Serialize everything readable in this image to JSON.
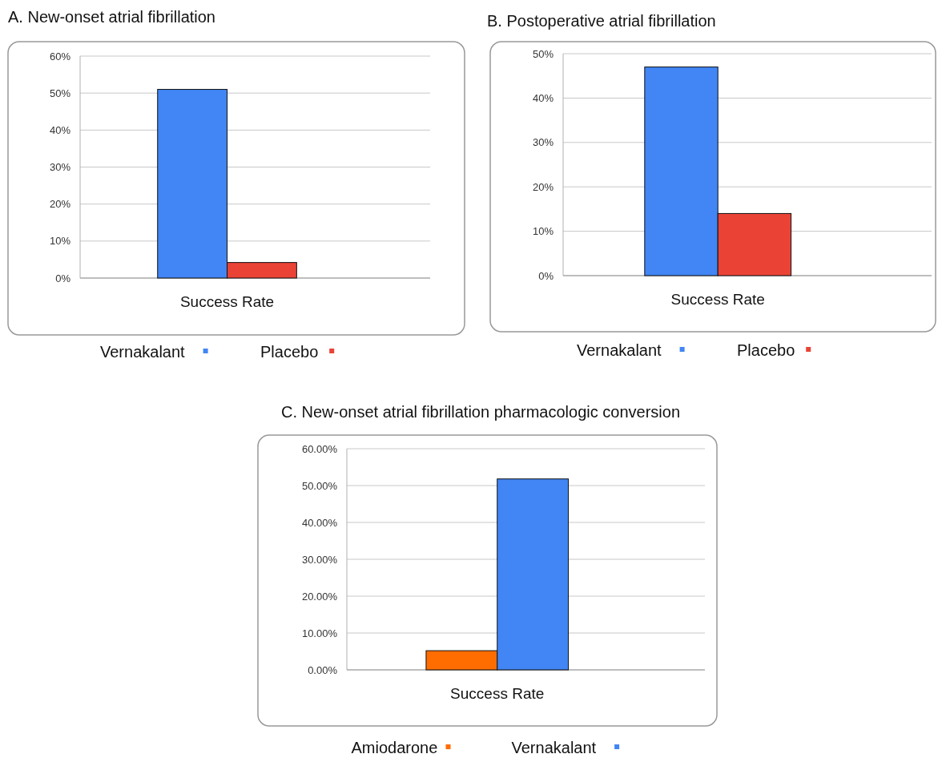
{
  "chart_data": [
    {
      "type": "bar",
      "title": "A. New-onset atrial fibrillation",
      "categories": [
        "Success Rate"
      ],
      "series": [
        {
          "name": "Vernakalant",
          "color": "#4285f4",
          "values": [
            51
          ]
        },
        {
          "name": "Placebo",
          "color": "#ea4335",
          "values": [
            4.2
          ]
        }
      ],
      "ylim": [
        0,
        60
      ],
      "yticks": [
        {
          "value": 0,
          "label": "0%"
        },
        {
          "value": 10,
          "label": "10%"
        },
        {
          "value": 20,
          "label": "20%"
        },
        {
          "value": 30,
          "label": "30%"
        },
        {
          "value": 40,
          "label": "40%"
        },
        {
          "value": 50,
          "label": "50%"
        },
        {
          "value": 60,
          "label": "60%"
        }
      ],
      "grid": "y",
      "legend": "bottom"
    },
    {
      "type": "bar",
      "title": "B.  Postoperative atrial fibrillation",
      "categories": [
        "Success Rate"
      ],
      "series": [
        {
          "name": "Vernakalant",
          "color": "#4285f4",
          "values": [
            47
          ]
        },
        {
          "name": "Placebo",
          "color": "#ea4335",
          "values": [
            14
          ]
        }
      ],
      "ylim": [
        0,
        50
      ],
      "yticks": [
        {
          "value": 0,
          "label": "0%"
        },
        {
          "value": 10,
          "label": "10%"
        },
        {
          "value": 20,
          "label": "20%"
        },
        {
          "value": 30,
          "label": "30%"
        },
        {
          "value": 40,
          "label": "40%"
        },
        {
          "value": 50,
          "label": "50%"
        }
      ],
      "grid": "y",
      "legend": "bottom"
    },
    {
      "type": "bar",
      "title": "C. New-onset atrial fibrillation pharmacologic conversion",
      "categories": [
        "Success Rate"
      ],
      "series": [
        {
          "name": "Amiodarone",
          "color": "#ff6d01",
          "values": [
            5.2
          ]
        },
        {
          "name": "Vernakalant",
          "color": "#4285f4",
          "values": [
            51.8
          ]
        }
      ],
      "ylim": [
        0,
        60
      ],
      "yticks": [
        {
          "value": 0,
          "label": "0.00%"
        },
        {
          "value": 10,
          "label": "10.00%"
        },
        {
          "value": 20,
          "label": "20.00%"
        },
        {
          "value": 30,
          "label": "30.00%"
        },
        {
          "value": 40,
          "label": "40.00%"
        },
        {
          "value": 50,
          "label": "50.00%"
        },
        {
          "value": 60,
          "label": "60.00%"
        }
      ],
      "grid": "y",
      "legend": "bottom"
    }
  ]
}
